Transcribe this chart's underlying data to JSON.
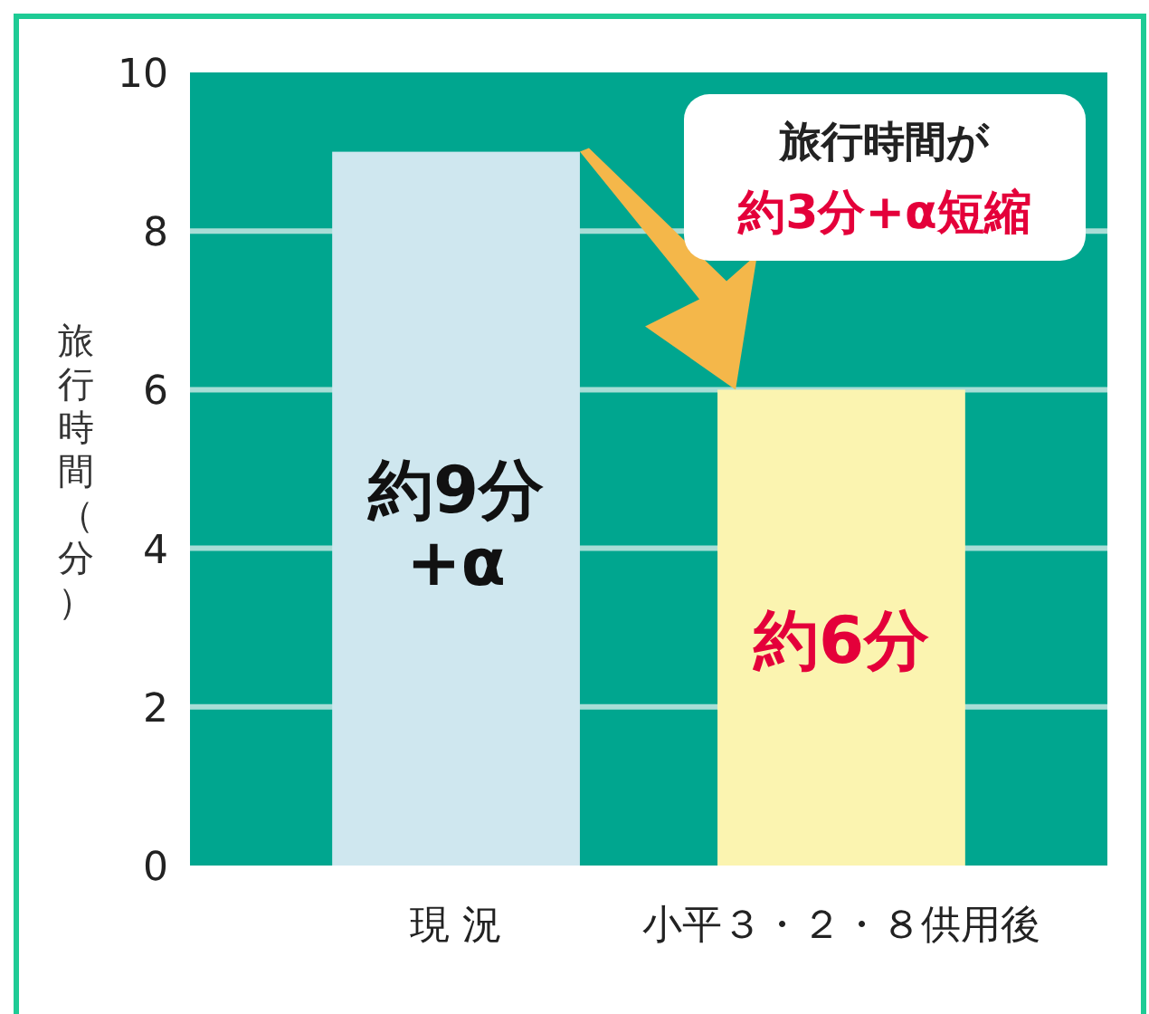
{
  "chart_data": {
    "type": "bar",
    "ylabel": "旅行時間（分）",
    "categories": [
      "現 況",
      "小平３・２・８供用後"
    ],
    "values": [
      9,
      6
    ],
    "colors": [
      "#cfe7ef",
      "#fbf4b0"
    ],
    "value_labels": [
      "約9分+α",
      "約6分"
    ],
    "annotations": [
      "旅行時間が",
      "約3分+α短縮"
    ],
    "ylim": [
      0,
      10
    ],
    "yticks": [
      0,
      2,
      4,
      6,
      8,
      10
    ],
    "grid": "y"
  }
}
